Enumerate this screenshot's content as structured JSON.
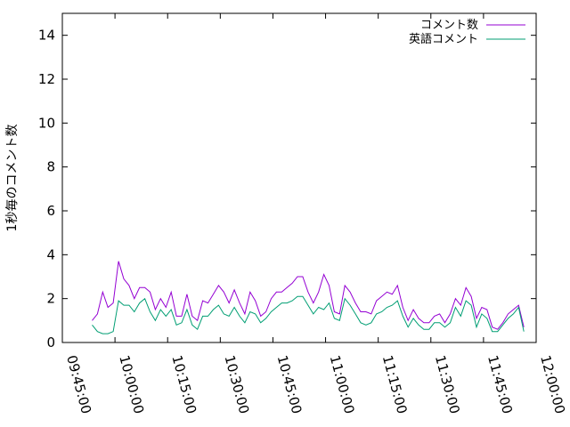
{
  "chart_data": {
    "type": "line",
    "ylabel": "1秒毎のコメント数",
    "ylim": [
      0,
      15
    ],
    "yticks": [
      0,
      2,
      4,
      6,
      8,
      10,
      12,
      14
    ],
    "xlim": [
      "09:45:00",
      "12:00:00"
    ],
    "xticks": [
      "09:45:00",
      "10:00:00",
      "10:15:00",
      "10:30:00",
      "10:45:00",
      "11:00:00",
      "11:15:00",
      "11:30:00",
      "11:45:00",
      "12:00:00"
    ],
    "grid": false,
    "legend_position": "top-right",
    "x": [
      "09:53:30",
      "09:55:00",
      "09:56:30",
      "09:58:00",
      "09:59:30",
      "10:01:00",
      "10:02:30",
      "10:04:00",
      "10:05:30",
      "10:07:00",
      "10:08:30",
      "10:10:00",
      "10:11:30",
      "10:13:00",
      "10:14:30",
      "10:16:00",
      "10:17:30",
      "10:19:00",
      "10:20:30",
      "10:22:00",
      "10:23:30",
      "10:25:00",
      "10:26:30",
      "10:28:00",
      "10:29:30",
      "10:31:00",
      "10:32:30",
      "10:34:00",
      "10:35:30",
      "10:37:00",
      "10:38:30",
      "10:40:00",
      "10:41:30",
      "10:43:00",
      "10:44:30",
      "10:46:00",
      "10:47:30",
      "10:49:00",
      "10:50:30",
      "10:52:00",
      "10:53:30",
      "10:55:00",
      "10:56:30",
      "10:58:00",
      "10:59:30",
      "11:01:00",
      "11:02:30",
      "11:04:00",
      "11:05:30",
      "11:07:00",
      "11:08:30",
      "11:10:00",
      "11:11:30",
      "11:13:00",
      "11:14:30",
      "11:16:00",
      "11:17:30",
      "11:19:00",
      "11:20:30",
      "11:22:00",
      "11:23:30",
      "11:25:00",
      "11:26:30",
      "11:28:00",
      "11:29:30",
      "11:31:00",
      "11:32:30",
      "11:34:00",
      "11:35:30",
      "11:37:00",
      "11:38:30",
      "11:40:00",
      "11:41:30",
      "11:43:00",
      "11:44:30",
      "11:46:00",
      "11:47:30",
      "11:49:00",
      "11:50:30",
      "11:52:00",
      "11:53:30",
      "11:55:00",
      "11:56:30"
    ],
    "series": [
      {
        "name": "コメント数",
        "color": "#9400d3",
        "values": [
          1.0,
          1.3,
          2.3,
          1.6,
          1.8,
          3.7,
          2.9,
          2.6,
          2.0,
          2.5,
          2.5,
          2.3,
          1.5,
          2.0,
          1.6,
          2.3,
          1.2,
          1.2,
          2.2,
          1.2,
          1.0,
          1.9,
          1.8,
          2.2,
          2.6,
          2.3,
          1.8,
          2.4,
          1.8,
          1.3,
          2.3,
          1.9,
          1.2,
          1.4,
          2.0,
          2.3,
          2.3,
          2.5,
          2.7,
          3.0,
          3.0,
          2.3,
          1.8,
          2.3,
          3.1,
          2.6,
          1.4,
          1.3,
          2.6,
          2.3,
          1.8,
          1.4,
          1.4,
          1.3,
          1.9,
          2.1,
          2.3,
          2.2,
          2.6,
          1.6,
          1.0,
          1.5,
          1.1,
          0.9,
          0.9,
          1.2,
          1.3,
          0.9,
          1.3,
          2.0,
          1.7,
          2.5,
          2.1,
          1.1,
          1.6,
          1.5,
          0.7,
          0.6,
          0.9,
          1.3,
          1.5,
          1.7,
          0.7
        ]
      },
      {
        "name": "英語コメント",
        "color": "#009e73",
        "values": [
          0.8,
          0.5,
          0.4,
          0.4,
          0.5,
          1.9,
          1.7,
          1.7,
          1.4,
          1.8,
          2.0,
          1.4,
          1.0,
          1.5,
          1.2,
          1.5,
          0.8,
          0.9,
          1.5,
          0.8,
          0.6,
          1.2,
          1.2,
          1.5,
          1.7,
          1.3,
          1.2,
          1.6,
          1.2,
          0.9,
          1.4,
          1.3,
          0.9,
          1.1,
          1.4,
          1.6,
          1.8,
          1.8,
          1.9,
          2.1,
          2.1,
          1.7,
          1.3,
          1.6,
          1.5,
          1.8,
          1.1,
          1.0,
          2.0,
          1.7,
          1.3,
          0.9,
          0.8,
          0.9,
          1.3,
          1.4,
          1.6,
          1.7,
          1.9,
          1.2,
          0.7,
          1.1,
          0.8,
          0.6,
          0.6,
          0.9,
          0.9,
          0.7,
          0.9,
          1.6,
          1.2,
          1.9,
          1.7,
          0.7,
          1.3,
          1.1,
          0.5,
          0.5,
          0.8,
          1.1,
          1.3,
          1.6,
          0.5
        ]
      }
    ]
  }
}
